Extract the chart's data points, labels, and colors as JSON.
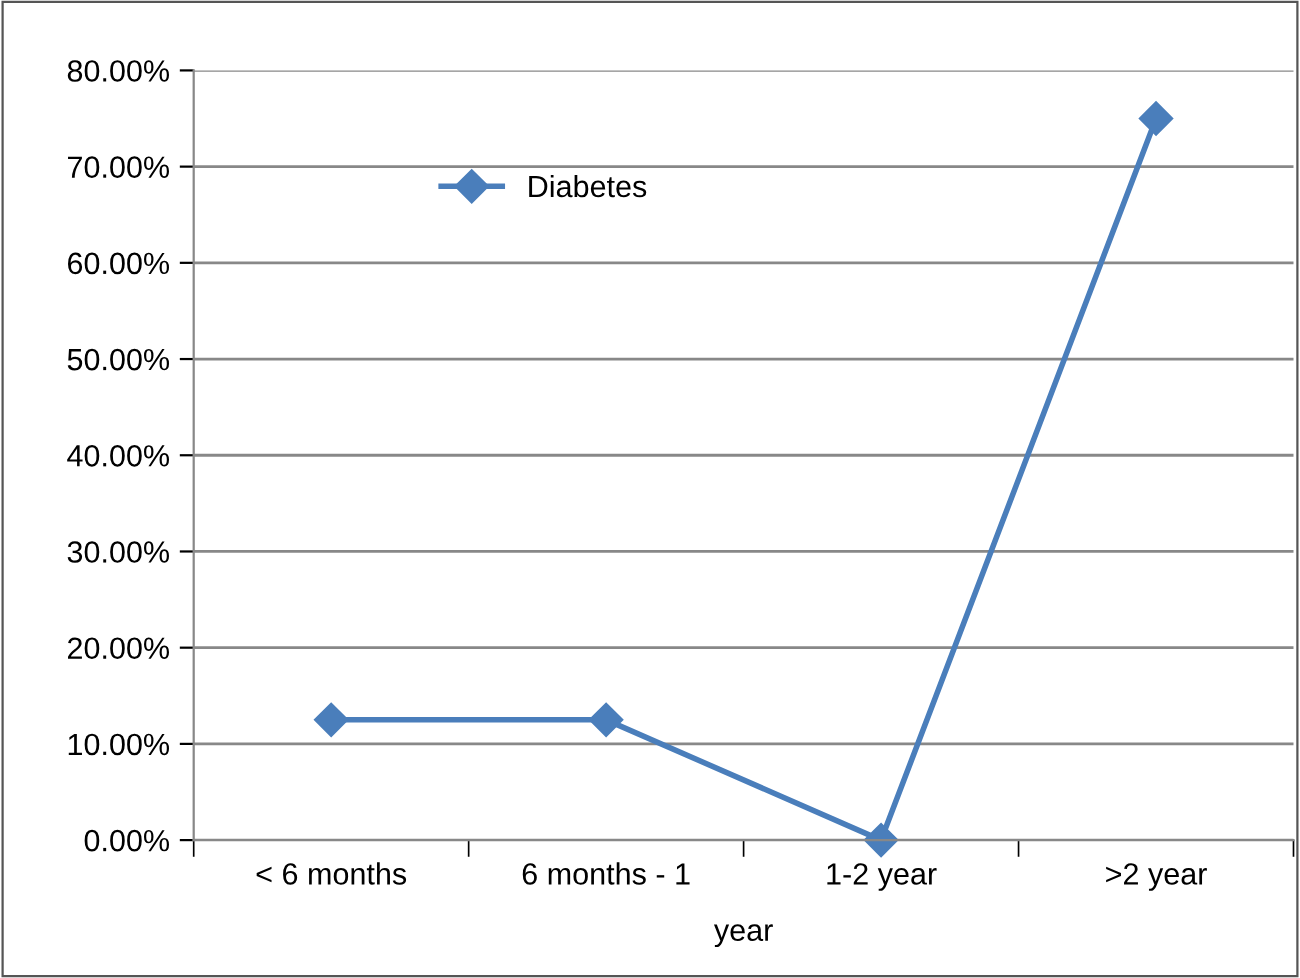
{
  "chart_data": {
    "type": "line",
    "xlabel": "year",
    "categories": [
      "< 6 months",
      "6 months - 1",
      "1-2 year",
      ">2 year"
    ],
    "series": [
      {
        "name": "Diabetes",
        "color": "#4a7ebb",
        "values": [
          12.5,
          12.5,
          0,
          75
        ]
      }
    ],
    "ylim": [
      0,
      80
    ],
    "yticks": [
      {
        "value": 0,
        "label": "0.00%"
      },
      {
        "value": 10,
        "label": "10.00%"
      },
      {
        "value": 20,
        "label": "20.00%"
      },
      {
        "value": 30,
        "label": "30.00%"
      },
      {
        "value": 40,
        "label": "40.00%"
      },
      {
        "value": 50,
        "label": "50.00%"
      },
      {
        "value": 60,
        "label": "60.00%"
      },
      {
        "value": 70,
        "label": "70.00%"
      },
      {
        "value": 80,
        "label": "80.00%"
      }
    ],
    "grid": "y",
    "legend": "top left",
    "marker": "diamond",
    "line_style": "solid"
  }
}
